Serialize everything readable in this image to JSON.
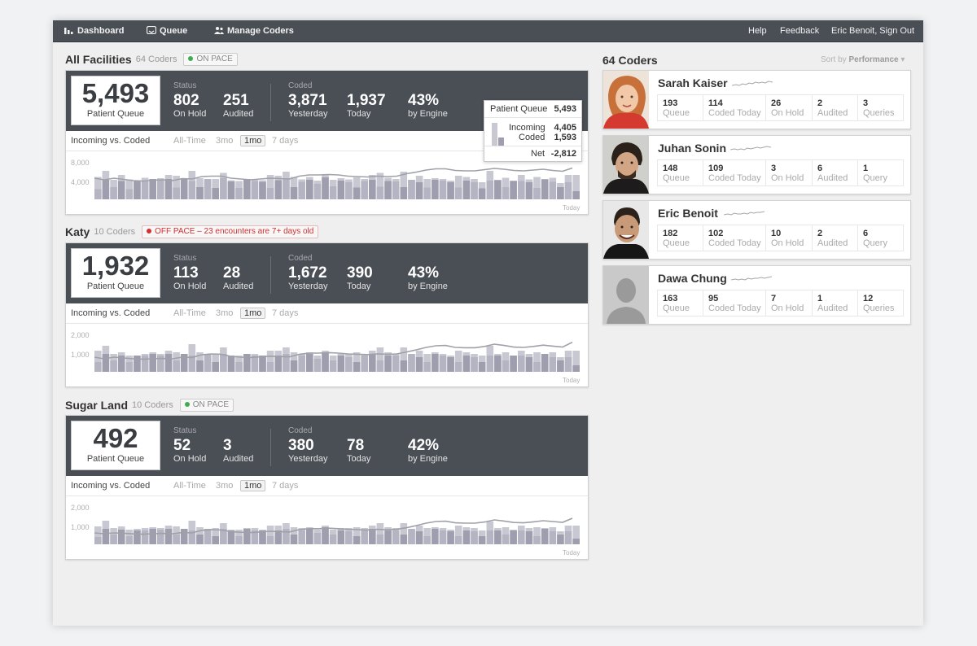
{
  "nav": {
    "dashboard": "Dashboard",
    "queue": "Queue",
    "manage_coders": "Manage Coders",
    "help": "Help",
    "feedback": "Feedback",
    "user": "Eric Benoit, Sign Out"
  },
  "colors": {
    "nav_bg": "#4a4e55",
    "on_pace": "#3cae4f",
    "off_pace": "#d62e2e",
    "bar_light": "#c8c8d2",
    "bar_dark": "#9e9eae",
    "line": "#a0a0a8"
  },
  "labels": {
    "status": "Status",
    "coded": "Coded",
    "patient_queue": "Patient Queue",
    "on_hold": "On Hold",
    "audited": "Audited",
    "yesterday": "Yesterday",
    "today": "Today",
    "by_engine": "by Engine",
    "chart_title": "Incoming vs. Coded",
    "range_all": "All-Time",
    "range_3mo": "3mo",
    "range_1mo": "1mo",
    "range_7d": "7 days",
    "today_axis": "Today"
  },
  "facilities": [
    {
      "name": "All Facilities",
      "coders": "64 Coders",
      "pace": "ON PACE",
      "queue": "5,493",
      "on_hold": "802",
      "audited": "251",
      "yesterday": "3,871",
      "today": "1,937",
      "engine": "43%",
      "y_top": "8,000",
      "y_mid": "4,000"
    },
    {
      "name": "Katy",
      "coders": "10 Coders",
      "pace": "OFF PACE – 23 encounters are  7+ days old",
      "queue": "1,932",
      "on_hold": "113",
      "audited": "28",
      "yesterday": "1,672",
      "today": "390",
      "engine": "43%",
      "y_top": "2,000",
      "y_mid": "1,000"
    },
    {
      "name": "Sugar Land",
      "coders": "10 Coders",
      "pace": "ON PACE",
      "queue": "492",
      "on_hold": "52",
      "audited": "3",
      "yesterday": "380",
      "today": "78",
      "engine": "42%",
      "y_top": "2,000",
      "y_mid": "1,000"
    }
  ],
  "tooltip": {
    "patient_queue_label": "Patient Queue",
    "patient_queue": "5,493",
    "incoming_label": "Incoming",
    "incoming": "4,405",
    "coded_label": "Coded",
    "coded": "1,593",
    "net_label": "Net",
    "net": "-2,812"
  },
  "coders_panel": {
    "title": "64 Coders",
    "sort_label": "Sort by",
    "sort_value": "Performance"
  },
  "coders": [
    {
      "name": "Sarah Kaiser",
      "queue": "193",
      "coded_today": "114",
      "on_hold": "26",
      "audited": "2",
      "queries": "3",
      "queue_l": "Queue",
      "coded_l": "Coded Today",
      "hold_l": "On Hold",
      "audited_l": "Audited",
      "queries_l": "Queries"
    },
    {
      "name": "Juhan Sonin",
      "queue": "148",
      "coded_today": "109",
      "on_hold": "3",
      "audited": "6",
      "queries": "1",
      "queue_l": "Queue",
      "coded_l": "Coded Today",
      "hold_l": "On Hold",
      "audited_l": "Audited",
      "queries_l": "Query"
    },
    {
      "name": "Eric Benoit",
      "queue": "182",
      "coded_today": "102",
      "on_hold": "10",
      "audited": "2",
      "queries": "6",
      "queue_l": "Queue",
      "coded_l": "Coded Today",
      "hold_l": "On Hold",
      "audited_l": "Audited",
      "queries_l": "Query"
    },
    {
      "name": "Dawa Chung",
      "queue": "163",
      "coded_today": "95",
      "on_hold": "7",
      "audited": "1",
      "queries": "12",
      "queue_l": "Queue",
      "coded_l": "Coded Today",
      "hold_l": "On Hold",
      "audited_l": "Audited",
      "queries_l": "Queries"
    }
  ],
  "chart_data": [
    {
      "type": "bar",
      "title": "Incoming vs. Coded",
      "ylim": [
        0,
        10000
      ],
      "series": [
        {
          "name": "Incoming",
          "values": [
            5500,
            7000,
            4800,
            6000,
            4900,
            4700,
            5300,
            5000,
            5200,
            6000,
            5800,
            4500,
            7000,
            5200,
            4500,
            5000,
            6500,
            4700,
            4500,
            4800,
            5000,
            4700,
            6000,
            5800,
            6800,
            5500,
            4900,
            5500,
            4600,
            5900,
            4800,
            5200,
            4900,
            5400,
            5000,
            6000,
            6500,
            5300,
            5000,
            6800,
            4700,
            5800,
            5000,
            5200,
            5000,
            4600,
            5800,
            5500,
            5000,
            4200,
            7000,
            4800,
            5300,
            4600,
            6000,
            4900,
            5500,
            5000,
            5300,
            4000,
            6000,
            6000
          ]
        },
        {
          "name": "Coded",
          "values": [
            2500,
            4800,
            3000,
            4500,
            2500,
            4500,
            4400,
            5000,
            4700,
            5000,
            2900,
            5000,
            4500,
            3000,
            5000,
            2800,
            5200,
            4400,
            2800,
            5000,
            4500,
            4300,
            2800,
            4700,
            5000,
            3000,
            4300,
            4800,
            3800,
            5400,
            3200,
            4600,
            4200,
            2900,
            4500,
            4800,
            3100,
            4500,
            4400,
            3000,
            4800,
            4200,
            2900,
            4800,
            4600,
            4200,
            2900,
            4600,
            4200,
            2700,
            4600,
            4700,
            3000,
            4500,
            4500,
            4200,
            2800,
            4900,
            4300,
            3000,
            4200,
            2000
          ]
        }
      ],
      "line": [
        5200,
        4800,
        5200,
        4900,
        4600,
        4500,
        4700,
        4800,
        4600,
        5100,
        5000,
        5600,
        5700,
        5700,
        5200,
        5000,
        4800,
        5000,
        5200,
        5100,
        5000,
        5700,
        6000,
        6000,
        6100,
        6000,
        5700,
        5600,
        5500,
        5700,
        5600,
        5700,
        6300,
        6700,
        7200,
        7500,
        7500,
        7100,
        7000,
        7000,
        7300,
        7600,
        7400,
        7100,
        7000,
        7200,
        7400,
        7100,
        6900,
        7700
      ],
      "ylabel": ""
    },
    {
      "type": "bar",
      "title": "Incoming vs. Coded",
      "ylim": [
        0,
        2500
      ],
      "series": [
        {
          "name": "Incoming",
          "values": [
            1300,
            1600,
            1100,
            1200,
            1000,
            1000,
            1100,
            1200,
            1100,
            1300,
            1200,
            1000,
            1700,
            1200,
            1000,
            1100,
            1500,
            1000,
            1000,
            1100,
            1100,
            1000,
            1300,
            1300,
            1500,
            1200,
            1100,
            1200,
            1000,
            1300,
            1000,
            1100,
            1100,
            1200,
            1100,
            1300,
            1500,
            1200,
            1100,
            1500,
            1000,
            1300,
            1100,
            1200,
            1100,
            1000,
            1300,
            1200,
            1100,
            1000,
            1600,
            1100,
            1200,
            1000,
            1300,
            1100,
            1200,
            1100,
            1200,
            900,
            1300,
            1300
          ]
        },
        {
          "name": "Coded",
          "values": [
            600,
            1100,
            700,
            1000,
            600,
            1000,
            1000,
            1100,
            1000,
            1100,
            700,
            1100,
            1000,
            700,
            1100,
            600,
            1100,
            1000,
            600,
            1100,
            1000,
            1000,
            600,
            1000,
            1100,
            700,
            1000,
            1100,
            800,
            1200,
            700,
            1000,
            900,
            600,
            1000,
            1100,
            700,
            1000,
            1000,
            700,
            1100,
            900,
            600,
            1100,
            1000,
            900,
            600,
            1000,
            900,
            600,
            1000,
            1000,
            700,
            1000,
            1000,
            900,
            600,
            1100,
            900,
            700,
            900,
            400
          ]
        }
      ],
      "line": [
        900,
        800,
        900,
        850,
        800,
        780,
        800,
        820,
        800,
        900,
        880,
        1050,
        1100,
        1080,
        950,
        900,
        880,
        920,
        960,
        940,
        920,
        1080,
        1150,
        1150,
        1180,
        1150,
        1100,
        1080,
        1060,
        1100,
        1080,
        1100,
        1220,
        1350,
        1500,
        1600,
        1620,
        1500,
        1480,
        1480,
        1560,
        1700,
        1620,
        1520,
        1500,
        1560,
        1640,
        1580,
        1520,
        1820
      ],
      "ylabel": ""
    },
    {
      "type": "bar",
      "title": "Incoming vs. Coded",
      "ylim": [
        0,
        2500
      ],
      "series": [
        {
          "name": "Incoming",
          "values": [
            1100,
            1450,
            1000,
            1100,
            900,
            950,
            1000,
            1050,
            1000,
            1150,
            1100,
            900,
            1450,
            1050,
            950,
            1000,
            1300,
            900,
            900,
            1000,
            1000,
            900,
            1150,
            1150,
            1300,
            1050,
            1000,
            1050,
            900,
            1150,
            900,
            1000,
            1000,
            1050,
            1000,
            1150,
            1300,
            1050,
            1000,
            1300,
            900,
            1150,
            1000,
            1050,
            1000,
            900,
            1150,
            1050,
            1000,
            850,
            1400,
            1000,
            1050,
            900,
            1150,
            1000,
            1050,
            1000,
            1050,
            800,
            1150,
            1150
          ]
        },
        {
          "name": "Coded",
          "values": [
            450,
            950,
            600,
            900,
            500,
            850,
            850,
            950,
            900,
            950,
            600,
            950,
            850,
            600,
            950,
            500,
            950,
            850,
            500,
            950,
            850,
            850,
            500,
            850,
            950,
            600,
            850,
            950,
            700,
            1050,
            600,
            850,
            800,
            500,
            850,
            950,
            600,
            850,
            850,
            600,
            950,
            800,
            500,
            950,
            850,
            800,
            500,
            850,
            800,
            500,
            850,
            850,
            600,
            850,
            850,
            800,
            500,
            950,
            800,
            600,
            800,
            350
          ]
        }
      ],
      "line": [
        700,
        650,
        700,
        680,
        640,
        620,
        650,
        670,
        650,
        720,
        700,
        860,
        900,
        880,
        780,
        740,
        720,
        760,
        800,
        780,
        760,
        900,
        960,
        960,
        990,
        960,
        920,
        900,
        880,
        920,
        900,
        920,
        1020,
        1150,
        1300,
        1400,
        1420,
        1320,
        1300,
        1300,
        1370,
        1500,
        1430,
        1340,
        1320,
        1380,
        1450,
        1400,
        1350,
        1600
      ],
      "ylabel": ""
    }
  ]
}
